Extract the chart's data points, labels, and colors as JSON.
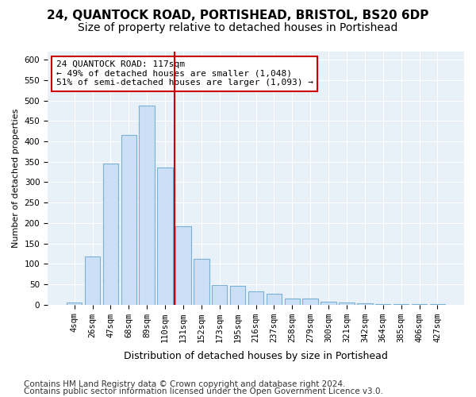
{
  "title": "24, QUANTOCK ROAD, PORTISHEAD, BRISTOL, BS20 6DP",
  "subtitle": "Size of property relative to detached houses in Portishead",
  "xlabel": "Distribution of detached houses by size in Portishead",
  "ylabel": "Number of detached properties",
  "categories": [
    "4sqm",
    "26sqm",
    "47sqm",
    "68sqm",
    "89sqm",
    "110sqm",
    "131sqm",
    "152sqm",
    "173sqm",
    "195sqm",
    "216sqm",
    "237sqm",
    "258sqm",
    "279sqm",
    "300sqm",
    "321sqm",
    "342sqm",
    "364sqm",
    "385sqm",
    "406sqm",
    "427sqm"
  ],
  "values": [
    5,
    118,
    345,
    415,
    488,
    335,
    192,
    112,
    48,
    47,
    33,
    26,
    15,
    14,
    8,
    5,
    4,
    2,
    2,
    1,
    1
  ],
  "bar_color": "#cce0f5",
  "bar_edge_color": "#7ab0d4",
  "vline_x": 5.5,
  "vline_color": "#cc0000",
  "annotation_line1": "24 QUANTOCK ROAD: 117sqm",
  "annotation_line2": "← 49% of detached houses are smaller (1,048)",
  "annotation_line3": "51% of semi-detached houses are larger (1,093) →",
  "annotation_box_color": "#ffffff",
  "annotation_box_edge": "#cc0000",
  "ylim": [
    0,
    620
  ],
  "yticks": [
    0,
    50,
    100,
    150,
    200,
    250,
    300,
    350,
    400,
    450,
    500,
    550,
    600
  ],
  "background_color": "#e8f0f8",
  "grid_color": "#ffffff",
  "footer1": "Contains HM Land Registry data © Crown copyright and database right 2024.",
  "footer2": "Contains public sector information licensed under the Open Government Licence v3.0.",
  "title_fontsize": 11,
  "subtitle_fontsize": 10,
  "tick_fontsize": 7.5,
  "ylabel_fontsize": 8,
  "xlabel_fontsize": 9,
  "footer_fontsize": 7.5
}
